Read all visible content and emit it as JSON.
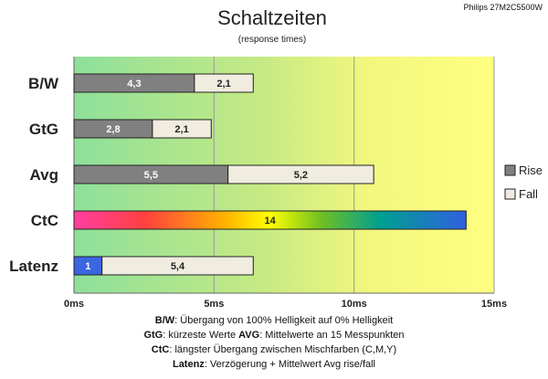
{
  "model": "Philips 27M2C5500W",
  "chart_data": {
    "type": "bar",
    "orientation": "horizontal",
    "stacked": true,
    "title": "Schaltzeiten",
    "subtitle": "(response times)",
    "categories": [
      "B/W",
      "GtG",
      "Avg",
      "CtC",
      "Latenz"
    ],
    "series": [
      {
        "name": "Rise",
        "color": "#808080",
        "values": [
          4.3,
          2.8,
          5.5,
          null,
          null
        ]
      },
      {
        "name": "Fall",
        "color": "#f0ece0",
        "values": [
          2.1,
          2.1,
          5.2,
          null,
          null
        ]
      }
    ],
    "ctc": {
      "value": 14,
      "label": "14"
    },
    "latenz": {
      "delay": 1,
      "delay_label": "1",
      "delay_color": "#3a66e0",
      "avg": 5.4,
      "avg_label": "5,4"
    },
    "value_labels": {
      "rise": [
        "4,3",
        "2,8",
        "5,5"
      ],
      "fall": [
        "2,1",
        "2,1",
        "5,2"
      ]
    },
    "xlim": [
      0,
      15
    ],
    "xticks": [
      0,
      5,
      10,
      15
    ],
    "xtick_labels": [
      "0ms",
      "5ms",
      "10ms",
      "15ms"
    ],
    "grid": true,
    "legend_position": "right",
    "background_gradient": [
      "#8ee09a",
      "#d0ec80",
      "#ffff80"
    ]
  },
  "footnotes": [
    [
      {
        "b": "B/W",
        "t": ":  Übergang von 100% Helligkeit auf 0% Helligkeit"
      }
    ],
    [
      {
        "b": "GtG",
        "t": ": kürzeste  Werte      "
      },
      {
        "b": "AVG",
        "t": ": Mittelwerte  an 15 Messpunkten"
      }
    ],
    [
      {
        "b": "CtC",
        "t": ": längster Übergang zwischen Mischfarben (C,M,Y)"
      }
    ],
    [
      {
        "b": "Latenz",
        "t": ": Verzögerung  + Mittelwert  Avg rise/fall"
      }
    ]
  ]
}
